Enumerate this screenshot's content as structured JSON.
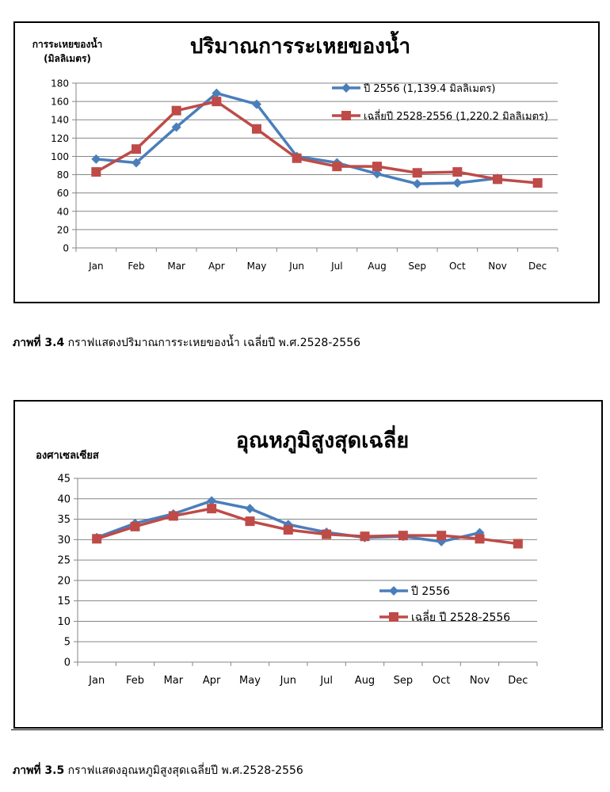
{
  "chart_data": [
    {
      "type": "line",
      "title": "ปริมาณการระเหยของน้ำ",
      "ylabel_line1": "การระเหยของน้ำ",
      "ylabel_line2": "(มิลลิเมตร)",
      "xlabel": "",
      "categories": [
        "Jan",
        "Feb",
        "Mar",
        "Apr",
        "May",
        "Jun",
        "Jul",
        "Aug",
        "Sep",
        "Oct",
        "Nov",
        "Dec"
      ],
      "ylim": [
        0,
        180
      ],
      "yticks": [
        0,
        20,
        40,
        60,
        80,
        100,
        120,
        140,
        160,
        180
      ],
      "grid": true,
      "legend_position": "top-right",
      "series": [
        {
          "name": "ปี 2556 (1,139.4 มิลลิเมตร)",
          "color": "#4A7EBB",
          "marker": "diamond",
          "values": [
            97,
            93,
            132,
            169,
            157,
            100,
            93,
            81,
            70,
            71,
            76,
            null
          ]
        },
        {
          "name": "เฉลี่ยปี 2528-2556 (1,220.2 มิลลิเมตร)",
          "color": "#BE4B48",
          "marker": "square",
          "values": [
            83,
            108,
            150,
            160,
            130,
            98,
            89,
            89,
            82,
            83,
            75,
            71
          ]
        }
      ]
    },
    {
      "type": "line",
      "title": "อุณหภูมิสูงสุดเฉลี่ย",
      "ylabel_line1": "องศาเซลเซียส",
      "xlabel": "",
      "categories": [
        "Jan",
        "Feb",
        "Mar",
        "Apr",
        "May",
        "Jun",
        "Jul",
        "Aug",
        "Sep",
        "Oct",
        "Nov",
        "Dec"
      ],
      "ylim": [
        0,
        45
      ],
      "yticks": [
        0,
        5,
        10,
        15,
        20,
        25,
        30,
        35,
        40,
        45
      ],
      "grid": true,
      "legend_position": "center-right",
      "series": [
        {
          "name": "ปี 2556",
          "color": "#4A7EBB",
          "marker": "diamond",
          "values": [
            30.5,
            34,
            36.3,
            39.5,
            37.6,
            33.7,
            31.8,
            30.5,
            30.8,
            29.5,
            31.7,
            null
          ]
        },
        {
          "name": "เฉลี่ย ปี 2528-2556",
          "color": "#BE4B48",
          "marker": "square",
          "values": [
            30.2,
            33.2,
            35.8,
            37.6,
            34.5,
            32.4,
            31.3,
            30.8,
            31,
            31,
            30.2,
            29
          ]
        }
      ]
    }
  ],
  "captions": [
    {
      "label": "ภาพที่ 3.4",
      "text": " กราฟแสดงปริมาณการระเหยของน้ำ เฉลี่ยปี พ.ศ.2528-2556"
    },
    {
      "label": "ภาพที่ 3.5",
      "text": " กราฟแสดงอุณหภูมิสูงสุดเฉลี่ยปี พ.ศ.2528-2556"
    }
  ]
}
